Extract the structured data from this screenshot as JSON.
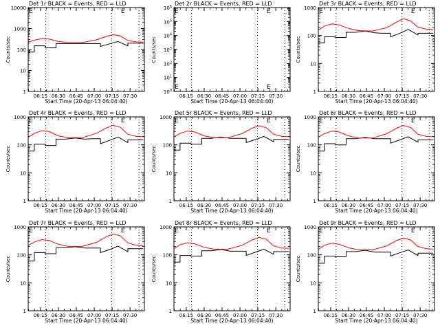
{
  "figure": {
    "start_time_label": "Start Time (20-Apr-13 06:04:40)",
    "ylabel": "Counts/sec",
    "legend_note": "BLACK = Events, RED = LLD",
    "marker_glyph": "E"
  },
  "colors": {
    "events": "#000000",
    "lld": "#ff0000",
    "axis": "#000000",
    "background": "#ffffff"
  },
  "chart_data": [
    {
      "type": "line",
      "title": "Det 1r BLACK = Events, RED = LLD",
      "xlabel": "Start Time (20-Apr-13 06:04:40)",
      "ylabel": "Counts/sec",
      "yscale": "log",
      "ylim": [
        1,
        10000
      ],
      "ytick_values": [
        1,
        10,
        100,
        1000,
        10000
      ],
      "ytick_labels": [
        "1",
        "10",
        "100",
        "1000",
        "10000"
      ],
      "x_tick_labels": [
        "06:15",
        "06:30",
        "06:45",
        "07:00",
        "07:15",
        "07:30"
      ],
      "x_tick_minutes": [
        15,
        30,
        45,
        60,
        75,
        90
      ],
      "xlim_minutes": [
        4.7,
        102
      ],
      "vlines_minutes": [
        19.5,
        74.7,
        97.5
      ],
      "markers_minutes": [
        7,
        84
      ],
      "series": [
        {
          "name": "Events",
          "x_minutes": [
            5,
            9.8,
            9.8,
            19,
            19,
            28,
            28,
            36,
            40,
            50,
            58,
            65.2,
            65.2,
            72,
            80,
            88,
            88.2,
            88.2,
            101
          ],
          "values": [
            75,
            75,
            150,
            150,
            120,
            120,
            190,
            190,
            190,
            190,
            190,
            190,
            140,
            180,
            240,
            150,
            150,
            200,
            200
          ]
        },
        {
          "name": "LLD",
          "x_minutes": [
            5,
            10,
            16,
            22,
            30,
            38,
            50,
            62,
            70,
            76,
            82,
            88,
            95,
            101
          ],
          "values": [
            230,
            280,
            330,
            320,
            240,
            215,
            215,
            290,
            420,
            510,
            440,
            270,
            230,
            225
          ]
        }
      ]
    },
    {
      "type": "line",
      "title": "Det 2r BLACK = Events, RED = LLD",
      "xlabel": "Start Time (20-Apr-13 06:04:40)",
      "ylabel": "Counts/sec",
      "yscale": "log",
      "ylim": [
        1,
        1000000
      ],
      "ytick_values": [
        1,
        10,
        100,
        1000,
        10000,
        100000,
        1000000
      ],
      "ytick_labels": [
        "10^0",
        "10^1",
        "10^2",
        "10^3",
        "10^4",
        "10^5",
        "10^6"
      ],
      "x_tick_labels": [
        "06:15",
        "06:30",
        "06:45",
        "07:00",
        "07:15",
        "07:30"
      ],
      "x_tick_minutes": [
        15,
        30,
        45,
        60,
        75,
        90
      ],
      "xlim_minutes": [
        4.7,
        102
      ],
      "vlines_minutes": [
        19.5,
        74.7,
        97.5
      ],
      "markers_minutes": [
        7,
        84
      ],
      "series": []
    },
    {
      "type": "line",
      "title": "Det 3r BLACK = Events, RED = LLD",
      "xlabel": "Start Time (20-Apr-13 06:04:40)",
      "ylabel": "Counts/sec",
      "yscale": "log",
      "ylim": [
        1,
        1000
      ],
      "ytick_values": [
        1,
        10,
        100,
        1000
      ],
      "ytick_labels": [
        "1",
        "10",
        "100",
        "1000"
      ],
      "x_tick_labels": [
        "06:15",
        "06:30",
        "06:45",
        "07:00",
        "07:15",
        "07:30"
      ],
      "x_tick_minutes": [
        15,
        30,
        45,
        60,
        75,
        90
      ],
      "xlim_minutes": [
        4.7,
        102
      ],
      "vlines_minutes": [
        19.5,
        74.7,
        97.5
      ],
      "markers_minutes": [
        7,
        84
      ],
      "series": [
        {
          "name": "Events",
          "x_minutes": [
            5,
            9.8,
            9.8,
            19,
            19,
            28,
            28,
            36,
            44,
            52,
            58,
            65.2,
            65.2,
            72,
            80,
            88,
            88.2,
            88.2,
            101
          ],
          "values": [
            55,
            55,
            90,
            90,
            85,
            85,
            130,
            130,
            145,
            125,
            120,
            120,
            90,
            115,
            165,
            105,
            105,
            120,
            120
          ]
        },
        {
          "name": "LLD",
          "x_minutes": [
            5,
            10,
            16,
            22,
            30,
            38,
            50,
            62,
            70,
            76,
            82,
            88,
            95,
            101
          ],
          "values": [
            160,
            220,
            260,
            240,
            180,
            150,
            145,
            190,
            300,
            400,
            330,
            200,
            170,
            165
          ]
        }
      ]
    },
    {
      "type": "line",
      "title": "Det 4r BLACK = Events, RED = LLD",
      "xlabel": "Start Time (20-Apr-13 06:04:40)",
      "ylabel": "Counts/sec",
      "yscale": "log",
      "ylim": [
        1,
        1000
      ],
      "ytick_values": [
        1,
        10,
        100,
        1000
      ],
      "ytick_labels": [
        "1",
        "10",
        "100",
        "1000"
      ],
      "x_tick_labels": [
        "06:15",
        "06:30",
        "06:45",
        "07:00",
        "07:15",
        "07:30"
      ],
      "x_tick_minutes": [
        15,
        30,
        45,
        60,
        75,
        90
      ],
      "xlim_minutes": [
        4.7,
        102
      ],
      "vlines_minutes": [
        19.5,
        74.7,
        97.5
      ],
      "markers_minutes": [
        7,
        84
      ],
      "series": [
        {
          "name": "Events",
          "x_minutes": [
            5,
            9.8,
            9.8,
            19,
            19,
            28,
            28,
            36,
            44,
            52,
            58,
            65.2,
            65.2,
            72,
            80,
            88,
            88.2,
            88.2,
            101
          ],
          "values": [
            60,
            60,
            105,
            105,
            95,
            95,
            160,
            160,
            175,
            160,
            165,
            165,
            110,
            140,
            190,
            120,
            120,
            150,
            150
          ]
        },
        {
          "name": "LLD",
          "x_minutes": [
            5,
            10,
            16,
            22,
            30,
            38,
            50,
            62,
            70,
            76,
            82,
            88,
            95,
            101
          ],
          "values": [
            190,
            260,
            320,
            300,
            210,
            180,
            180,
            260,
            400,
            500,
            420,
            240,
            200,
            195
          ]
        }
      ]
    },
    {
      "type": "line",
      "title": "Det 5r BLACK = Events, RED = LLD",
      "xlabel": "Start Time (20-Apr-13 06:04:40)",
      "ylabel": "Counts/sec",
      "yscale": "log",
      "ylim": [
        1,
        1000
      ],
      "ytick_values": [
        1,
        10,
        100,
        1000
      ],
      "ytick_labels": [
        "1",
        "10",
        "100",
        "1000"
      ],
      "x_tick_labels": [
        "06:15",
        "06:30",
        "06:45",
        "07:00",
        "07:15",
        "07:30"
      ],
      "x_tick_minutes": [
        15,
        30,
        45,
        60,
        75,
        90
      ],
      "xlim_minutes": [
        4.7,
        102
      ],
      "vlines_minutes": [
        19.5,
        74.7,
        97.5
      ],
      "markers_minutes": [
        7,
        84
      ],
      "series": [
        {
          "name": "Events",
          "x_minutes": [
            5,
            9.8,
            9.8,
            19,
            19,
            28,
            28,
            36,
            44,
            52,
            58,
            65.2,
            65.2,
            72,
            80,
            88,
            88.2,
            88.2,
            101
          ],
          "values": [
            65,
            65,
            115,
            115,
            105,
            105,
            170,
            170,
            190,
            170,
            170,
            170,
            120,
            150,
            200,
            130,
            130,
            155,
            155
          ]
        },
        {
          "name": "LLD",
          "x_minutes": [
            5,
            10,
            16,
            22,
            30,
            38,
            50,
            62,
            70,
            76,
            82,
            88,
            95,
            101
          ],
          "values": [
            195,
            260,
            310,
            290,
            210,
            180,
            180,
            255,
            390,
            480,
            410,
            240,
            200,
            195
          ]
        }
      ]
    },
    {
      "type": "line",
      "title": "Det 6r BLACK = Events, RED = LLD",
      "xlabel": "Start Time (20-Apr-13 06:04:40)",
      "ylabel": "Counts/sec",
      "yscale": "log",
      "ylim": [
        1,
        1000
      ],
      "ytick_values": [
        1,
        10,
        100,
        1000
      ],
      "ytick_labels": [
        "1",
        "10",
        "100",
        "1000"
      ],
      "x_tick_labels": [
        "06:15",
        "06:30",
        "06:45",
        "07:00",
        "07:15",
        "07:30"
      ],
      "x_tick_minutes": [
        15,
        30,
        45,
        60,
        75,
        90
      ],
      "xlim_minutes": [
        4.7,
        102
      ],
      "vlines_minutes": [
        19.5,
        74.7,
        97.5
      ],
      "markers_minutes": [
        7,
        84
      ],
      "series": [
        {
          "name": "Events",
          "x_minutes": [
            5,
            9.8,
            9.8,
            19,
            19,
            28,
            28,
            36,
            44,
            52,
            58,
            65.2,
            65.2,
            72,
            80,
            88,
            88.2,
            88.2,
            101
          ],
          "values": [
            60,
            60,
            110,
            110,
            100,
            100,
            165,
            165,
            185,
            165,
            165,
            165,
            115,
            145,
            195,
            125,
            125,
            150,
            150
          ]
        },
        {
          "name": "LLD",
          "x_minutes": [
            5,
            10,
            16,
            22,
            30,
            38,
            50,
            62,
            70,
            76,
            82,
            88,
            95,
            101
          ],
          "values": [
            190,
            255,
            310,
            290,
            210,
            175,
            175,
            250,
            390,
            490,
            415,
            240,
            200,
            195
          ]
        }
      ]
    },
    {
      "type": "line",
      "title": "Det 7r BLACK = Events, RED = LLD",
      "xlabel": "Start Time (20-Apr-13 06:04:40)",
      "ylabel": "Counts/sec",
      "yscale": "log",
      "ylim": [
        1,
        1000
      ],
      "ytick_values": [
        1,
        10,
        100,
        1000
      ],
      "ytick_labels": [
        "1",
        "10",
        "100",
        "1000"
      ],
      "x_tick_labels": [
        "06:15",
        "06:30",
        "06:45",
        "07:00",
        "07:15",
        "07:30"
      ],
      "x_tick_minutes": [
        15,
        30,
        45,
        60,
        75,
        90
      ],
      "xlim_minutes": [
        4.7,
        102
      ],
      "vlines_minutes": [
        19.5,
        74.7,
        97.5
      ],
      "markers_minutes": [
        7,
        84
      ],
      "series": [
        {
          "name": "Events",
          "x_minutes": [
            5,
            9.8,
            9.8,
            19,
            19,
            28,
            28,
            36,
            44,
            52,
            58,
            65.2,
            65.2,
            72,
            80,
            88,
            88.2,
            88.2,
            101
          ],
          "values": [
            60,
            60,
            120,
            120,
            110,
            110,
            180,
            180,
            195,
            175,
            175,
            175,
            120,
            150,
            205,
            130,
            130,
            165,
            165
          ]
        },
        {
          "name": "LLD",
          "x_minutes": [
            5,
            10,
            16,
            22,
            30,
            38,
            50,
            62,
            70,
            76,
            82,
            88,
            95,
            101
          ],
          "values": [
            220,
            290,
            350,
            330,
            240,
            200,
            200,
            280,
            440,
            560,
            470,
            270,
            220,
            210
          ]
        }
      ]
    },
    {
      "type": "line",
      "title": "Det 8r BLACK = Events, RED = LLD",
      "xlabel": "Start Time (20-Apr-13 06:04:40)",
      "ylabel": "Counts/sec",
      "yscale": "log",
      "ylim": [
        1,
        1000
      ],
      "ytick_values": [
        1,
        10,
        100,
        1000
      ],
      "ytick_labels": [
        "1",
        "10",
        "100",
        "1000"
      ],
      "x_tick_labels": [
        "06:15",
        "06:30",
        "06:45",
        "07:00",
        "07:15",
        "07:30"
      ],
      "x_tick_minutes": [
        15,
        30,
        45,
        60,
        75,
        90
      ],
      "xlim_minutes": [
        4.7,
        102
      ],
      "vlines_minutes": [
        19.5,
        74.7,
        97.5
      ],
      "markers_minutes": [
        7,
        84
      ],
      "series": [
        {
          "name": "Events",
          "x_minutes": [
            5,
            9.8,
            9.8,
            19,
            19,
            28,
            28,
            36,
            44,
            52,
            58,
            65.2,
            65.2,
            72,
            80,
            88,
            88.2,
            88.2,
            101
          ],
          "values": [
            55,
            55,
            95,
            95,
            90,
            90,
            140,
            140,
            155,
            135,
            135,
            135,
            95,
            120,
            160,
            105,
            105,
            130,
            130
          ]
        },
        {
          "name": "LLD",
          "x_minutes": [
            5,
            10,
            16,
            22,
            30,
            38,
            50,
            62,
            70,
            76,
            82,
            88,
            95,
            101
          ],
          "values": [
            170,
            230,
            270,
            250,
            185,
            160,
            160,
            220,
            340,
            420,
            360,
            210,
            175,
            170
          ]
        }
      ]
    },
    {
      "type": "line",
      "title": "Det 9r BLACK = Events, RED = LLD",
      "xlabel": "Start Time (20-Apr-13 06:04:40)",
      "ylabel": "Counts/sec",
      "yscale": "log",
      "ylim": [
        1,
        1000
      ],
      "ytick_values": [
        1,
        10,
        100,
        1000
      ],
      "ytick_labels": [
        "1",
        "10",
        "100",
        "1000"
      ],
      "x_tick_labels": [
        "06:15",
        "06:30",
        "06:45",
        "07:00",
        "07:15",
        "07:30"
      ],
      "x_tick_minutes": [
        15,
        30,
        45,
        60,
        75,
        90
      ],
      "xlim_minutes": [
        4.7,
        102
      ],
      "vlines_minutes": [
        19.5,
        74.7,
        97.5
      ],
      "markers_minutes": [
        7,
        84
      ],
      "series": [
        {
          "name": "Events",
          "x_minutes": [
            5,
            9.8,
            9.8,
            19,
            19,
            28,
            28,
            36,
            44,
            52,
            58,
            65.2,
            65.2,
            72,
            80,
            88,
            88.2,
            88.2,
            101
          ],
          "values": [
            50,
            50,
            90,
            90,
            85,
            85,
            130,
            130,
            145,
            125,
            125,
            125,
            90,
            115,
            150,
            95,
            95,
            115,
            115
          ]
        },
        {
          "name": "LLD",
          "x_minutes": [
            5,
            10,
            16,
            22,
            30,
            38,
            50,
            62,
            70,
            76,
            82,
            88,
            95,
            101
          ],
          "values": [
            160,
            220,
            260,
            240,
            180,
            150,
            150,
            210,
            320,
            400,
            340,
            200,
            165,
            160
          ]
        }
      ]
    }
  ]
}
